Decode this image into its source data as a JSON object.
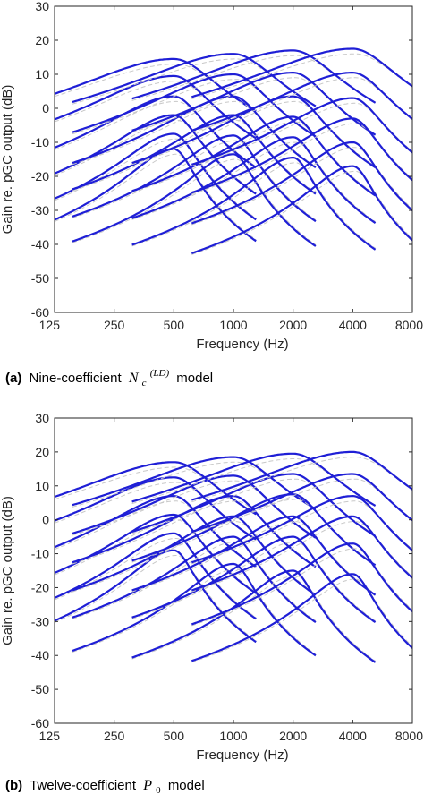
{
  "panels": [
    {
      "caption": {
        "letter": "(a)",
        "text_before": "Nine-coefficient",
        "math_base": "N",
        "math_sub": "c",
        "math_sup": "(LD)",
        "text_after": "model"
      },
      "chart_data": {
        "type": "line",
        "xlabel": "Frequency (Hz)",
        "ylabel": "Gain re. pGC output (dB)",
        "xscale": "log",
        "xlim": [
          125,
          8000
        ],
        "ylim": [
          -60,
          30
        ],
        "xticks": [
          125,
          250,
          500,
          1000,
          2000,
          4000,
          8000
        ],
        "xtick_labels": [
          "125",
          "250",
          "500",
          "1000",
          "2000",
          "4000",
          "8000"
        ],
        "yticks": [
          -60,
          -50,
          -40,
          -30,
          -20,
          -10,
          0,
          10,
          20,
          30
        ],
        "ytick_labels": [
          "-60",
          "-50",
          "-40",
          "-30",
          "-20",
          "-10",
          "0",
          "10",
          "20",
          "30"
        ],
        "grid": false,
        "series_color": "#1f1fd6",
        "reference_color": "#c8c8c8",
        "center_frequencies": [
          500,
          1000,
          2000,
          4000
        ],
        "peak_gains_db": [
          [
            14.5,
            9.5,
            3.5,
            -2.0,
            -7.5,
            -12.0
          ],
          [
            16.0,
            10.0,
            3.5,
            -2.0,
            -8.0,
            -13.5
          ],
          [
            17.0,
            10.5,
            3.5,
            -2.5,
            -8.5,
            -14.5
          ],
          [
            17.5,
            10.5,
            3.0,
            -3.0,
            -10.0,
            -17.0
          ]
        ]
      }
    },
    {
      "caption": {
        "letter": "(b)",
        "text_before": "Twelve-coefficient",
        "math_base": "P",
        "math_sub": "0",
        "math_sup": "",
        "text_after": "model"
      },
      "chart_data": {
        "type": "line",
        "xlabel": "Frequency (Hz)",
        "ylabel": "Gain re. pGC output (dB)",
        "xscale": "log",
        "xlim": [
          125,
          8000
        ],
        "ylim": [
          -60,
          30
        ],
        "xticks": [
          125,
          250,
          500,
          1000,
          2000,
          4000,
          8000
        ],
        "xtick_labels": [
          "125",
          "250",
          "500",
          "1000",
          "2000",
          "4000",
          "8000"
        ],
        "yticks": [
          -60,
          -50,
          -40,
          -30,
          -20,
          -10,
          0,
          10,
          20,
          30
        ],
        "ytick_labels": [
          "-60",
          "-50",
          "-40",
          "-30",
          "-20",
          "-10",
          "0",
          "10",
          "20",
          "30"
        ],
        "grid": false,
        "series_color": "#1f1fd6",
        "reference_color": "#c8c8c8",
        "center_frequencies": [
          500,
          1000,
          2000,
          4000
        ],
        "peak_gains_db": [
          [
            17.0,
            12.5,
            7.0,
            1.5,
            -4.0,
            -9.0
          ],
          [
            18.5,
            13.0,
            7.0,
            1.0,
            -5.0,
            -13.0
          ],
          [
            19.5,
            13.5,
            7.5,
            1.0,
            -5.0,
            -15.0
          ],
          [
            20.0,
            13.5,
            7.0,
            1.0,
            -7.0,
            -16.0
          ]
        ]
      }
    }
  ]
}
